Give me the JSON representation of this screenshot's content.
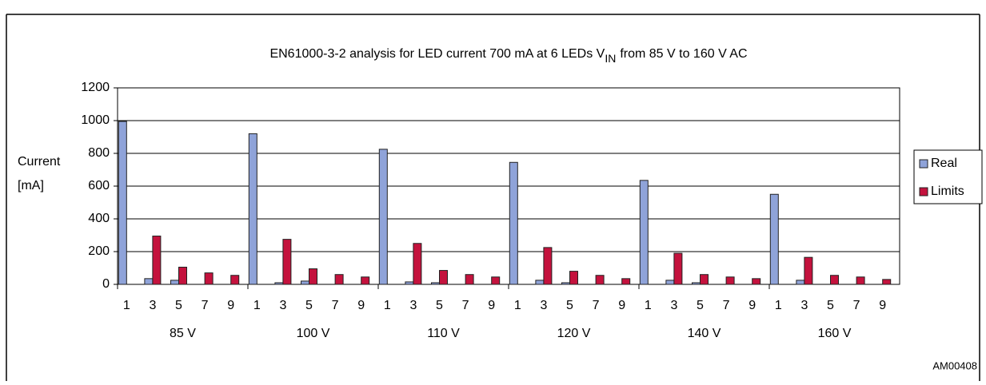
{
  "chart_data": {
    "type": "bar",
    "title": {
      "text": "EN61000-3-2 analysis for LED current 700 mA at 6 LEDs V",
      "subscript": "IN",
      "text_after": "from 85 V to 160 V AC"
    },
    "ylabel": [
      "Current",
      "[mA]"
    ],
    "groups": [
      "85 V",
      "100 V",
      "110 V",
      "120 V",
      "140 V",
      "160 V"
    ],
    "categories": [
      "1",
      "3",
      "5",
      "7",
      "9",
      "1",
      "3",
      "5",
      "7",
      "9",
      "1",
      "3",
      "5",
      "7",
      "9",
      "1",
      "3",
      "5",
      "7",
      "9",
      "1",
      "3",
      "5",
      "7",
      "9",
      "1",
      "3",
      "5",
      "7",
      "9"
    ],
    "series": [
      {
        "name": "Real",
        "color": "#8fa3d9",
        "values": [
          995,
          35,
          25,
          0,
          0,
          920,
          10,
          20,
          0,
          0,
          825,
          15,
          10,
          0,
          0,
          745,
          25,
          10,
          0,
          0,
          635,
          25,
          10,
          0,
          0,
          550,
          25,
          0,
          0,
          0
        ]
      },
      {
        "name": "Limits",
        "color": "#c4123d",
        "values": [
          null,
          295,
          105,
          70,
          55,
          null,
          275,
          95,
          60,
          45,
          null,
          250,
          85,
          60,
          45,
          null,
          225,
          80,
          55,
          35,
          null,
          190,
          60,
          45,
          35,
          null,
          165,
          55,
          45,
          30
        ]
      }
    ],
    "ylim": [
      0,
      1200
    ],
    "yticks": [
      0,
      200,
      400,
      600,
      800,
      1000,
      1200
    ],
    "grid": true,
    "legend": "right",
    "footer": "AM00408"
  }
}
